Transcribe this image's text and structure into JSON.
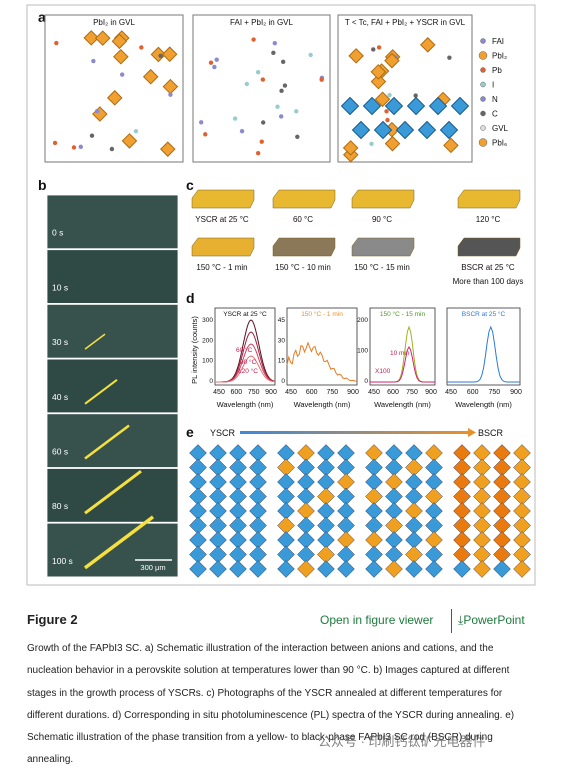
{
  "figure": {
    "panel_a": {
      "label": "a",
      "titles": [
        "PbI₂ in GVL",
        "FAI + PbI₂ in GVL",
        "T < Tc, FAI + PbI₂ + YSCR in GVL"
      ],
      "legend": [
        "FAI",
        "PbI₂",
        "Pb",
        "I",
        "N",
        "C",
        "GVL",
        "PbI₆"
      ]
    },
    "panel_b": {
      "label": "b",
      "times": [
        "0 s",
        "10 s",
        "30 s",
        "40 s",
        "60 s",
        "80 s",
        "100 s"
      ],
      "scale_bar": "300 μm"
    },
    "panel_c": {
      "label": "c",
      "samples": [
        "YSCR at 25 °C",
        "60 °C",
        "90 °C",
        "120 °C",
        "150 °C - 1 min",
        "150 °C - 10 min",
        "150 °C - 15 min",
        "BSCR at 25 °C"
      ],
      "note": "More than 100 days"
    },
    "panel_d": {
      "label": "d",
      "y_label": "PL intensity (counts)",
      "x_label": "Wavelength (nm)",
      "x_ticks": [
        450,
        600,
        750,
        900
      ],
      "plots": [
        {
          "title": "YSCR at 25 °C",
          "y_ticks": [
            0,
            100,
            200,
            300
          ],
          "annotations": [
            "60 °C",
            "90 °C",
            "120 °C"
          ]
        },
        {
          "title": "150 °C - 1 min",
          "y_ticks": [
            0,
            15,
            30,
            45
          ],
          "annotations": []
        },
        {
          "title": "150 °C - 15 min",
          "y_ticks": [
            0,
            100,
            200
          ],
          "annotations": [
            "10 min",
            "X100"
          ]
        },
        {
          "title": "BSCR at 25 °C",
          "y_ticks": [],
          "annotations": []
        }
      ]
    },
    "panel_e": {
      "label": "e",
      "start": "YSCR",
      "end": "BSCR"
    }
  },
  "caption": {
    "heading": "Figure 2",
    "viewer_link": "Open in figure viewer",
    "powerpoint": "PowerPoint",
    "text": "Growth of the FAPbI3 SC. a) Schematic illustration of the interaction between anions and cations, and the nucleation behavior in a perovskite solution at temperatures lower than 90 °C. b) Images captured at different stages in the growth process of YSCRs. c) Photographs of the YSCR annealed at different temperatures for different durations. d) Corresponding in situ photoluminescence (PL) spectra of the YSCR during annealing. e) Schematic illustration of the phase transition from a yellow- to black-phase FAPbI3 SC rod (BSCR) during annealing."
  },
  "watermark": "公众号 · 印刷钙钛矿光电器件"
}
